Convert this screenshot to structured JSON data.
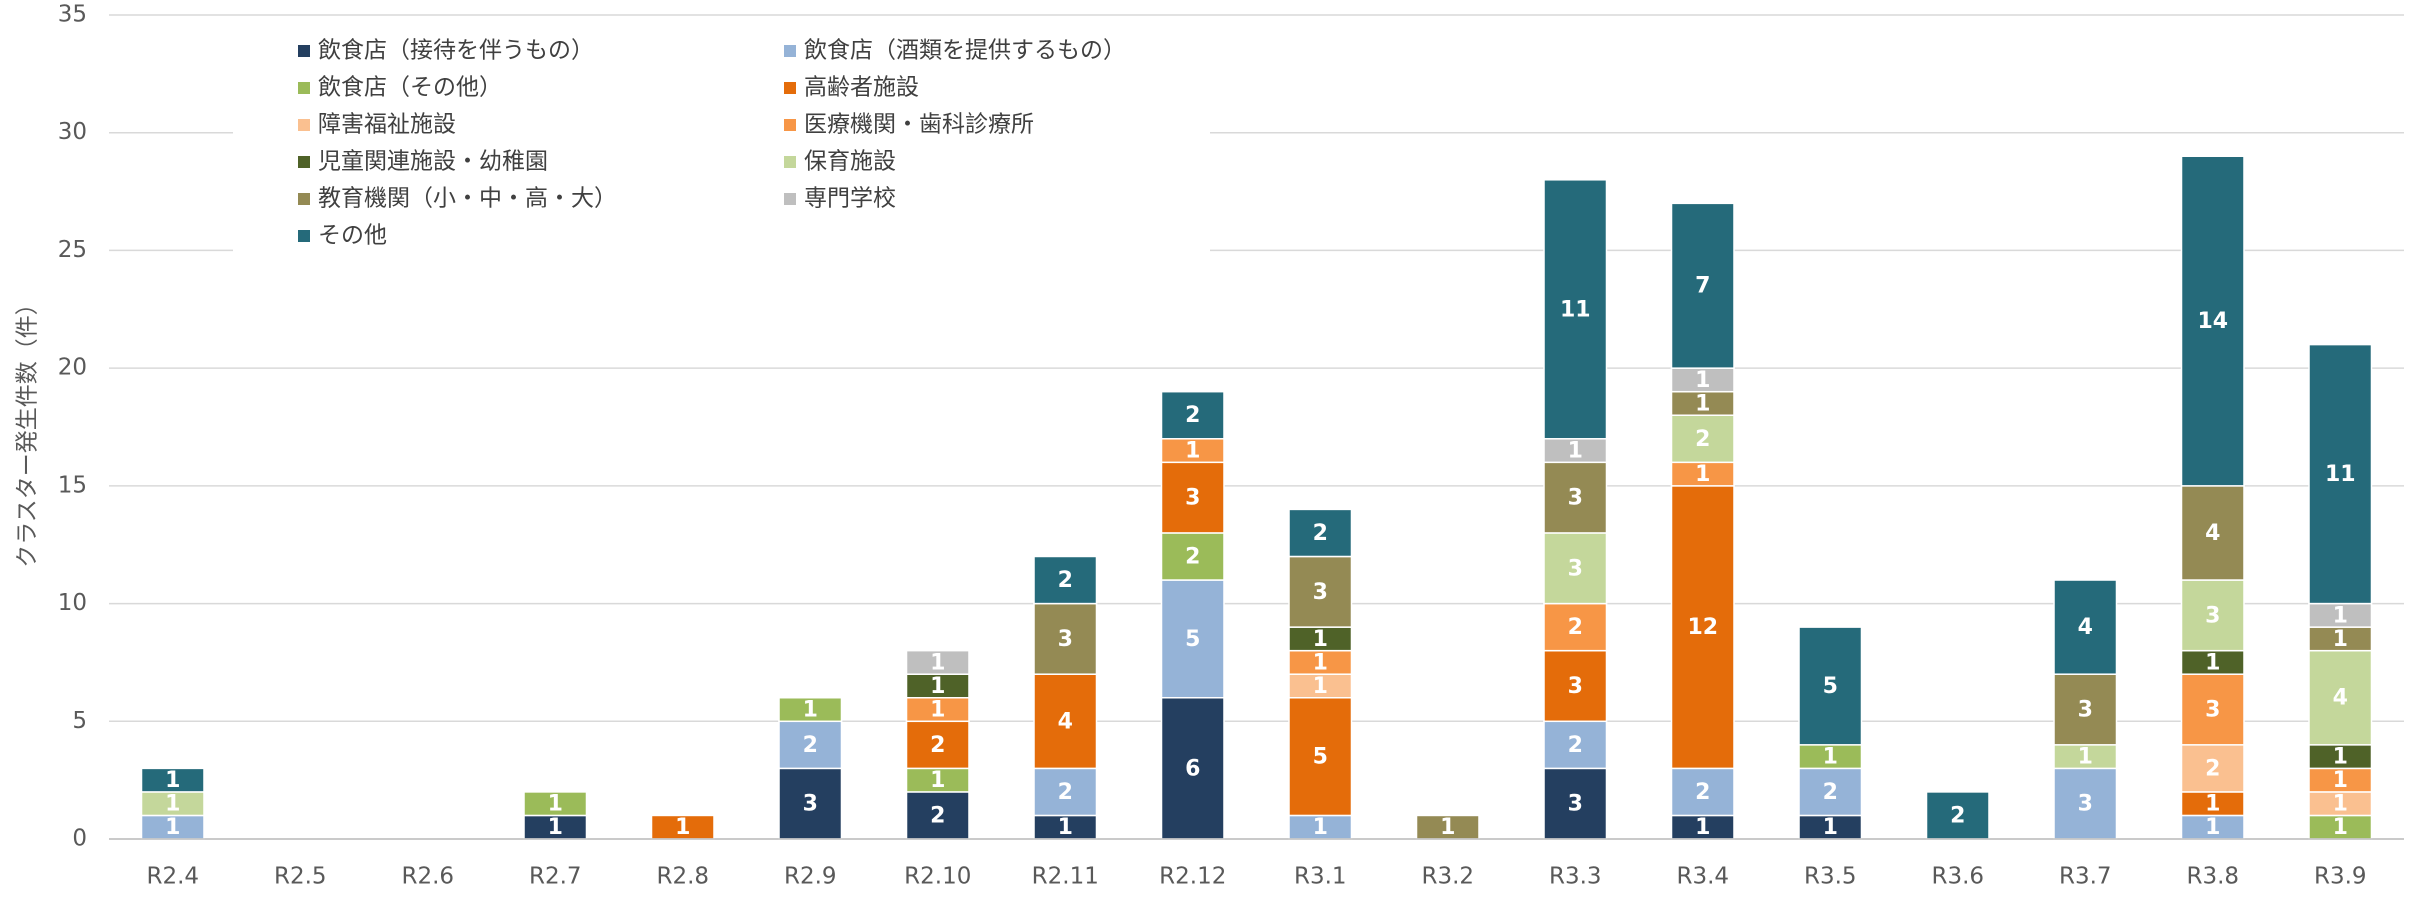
{
  "chart_data": {
    "type": "stacked_bar",
    "y_label": "クラスター発生件数（件）",
    "categories": [
      "R2.4",
      "R2.5",
      "R2.6",
      "R2.7",
      "R2.8",
      "R2.9",
      "R2.10",
      "R2.11",
      "R2.12",
      "R3.1",
      "R3.2",
      "R3.3",
      "R3.4",
      "R3.5",
      "R3.6",
      "R3.7",
      "R3.8",
      "R3.9"
    ],
    "series": [
      {
        "name": "飲食店（接待を伴うもの）",
        "color": "#243F60",
        "values": [
          0,
          0,
          0,
          1,
          0,
          3,
          2,
          1,
          6,
          0,
          0,
          3,
          1,
          1,
          0,
          0,
          0,
          0
        ]
      },
      {
        "name": "飲食店（酒類を提供するもの）",
        "color": "#95B3D7",
        "values": [
          1,
          0,
          0,
          0,
          0,
          2,
          0,
          2,
          5,
          1,
          0,
          2,
          2,
          2,
          0,
          3,
          1,
          0
        ]
      },
      {
        "name": "飲食店（その他）",
        "color": "#9BBB59",
        "values": [
          0,
          0,
          0,
          1,
          0,
          1,
          1,
          0,
          2,
          0,
          0,
          0,
          0,
          1,
          0,
          0,
          0,
          1
        ]
      },
      {
        "name": "高齢者施設",
        "color": "#E46C0A",
        "values": [
          0,
          0,
          0,
          0,
          1,
          0,
          2,
          4,
          3,
          5,
          0,
          3,
          12,
          0,
          0,
          0,
          1,
          0
        ]
      },
      {
        "name": "障害福祉施設",
        "color": "#FAC090",
        "values": [
          0,
          0,
          0,
          0,
          0,
          0,
          0,
          0,
          0,
          1,
          0,
          0,
          0,
          0,
          0,
          0,
          2,
          1
        ]
      },
      {
        "name": "医療機関・歯科診療所",
        "color": "#F79646",
        "values": [
          0,
          0,
          0,
          0,
          0,
          0,
          1,
          0,
          1,
          1,
          0,
          2,
          1,
          0,
          0,
          0,
          3,
          1
        ]
      },
      {
        "name": "児童関連施設・幼稚園",
        "color": "#4F6228",
        "values": [
          0,
          0,
          0,
          0,
          0,
          0,
          1,
          0,
          0,
          1,
          0,
          0,
          0,
          0,
          0,
          0,
          1,
          1
        ]
      },
      {
        "name": "保育施設",
        "color": "#C4D79B",
        "values": [
          1,
          0,
          0,
          0,
          0,
          0,
          0,
          0,
          0,
          0,
          0,
          3,
          2,
          0,
          0,
          1,
          3,
          4
        ]
      },
      {
        "name": "教育機関（小・中・高・大）",
        "color": "#948A54",
        "values": [
          0,
          0,
          0,
          0,
          0,
          0,
          0,
          3,
          0,
          3,
          1,
          3,
          1,
          0,
          0,
          3,
          4,
          1
        ]
      },
      {
        "name": "専門学校",
        "color": "#BFBFBF",
        "values": [
          0,
          0,
          0,
          0,
          0,
          0,
          1,
          0,
          0,
          0,
          0,
          1,
          1,
          0,
          0,
          0,
          0,
          1
        ]
      },
      {
        "name": "その他",
        "color": "#256A7A",
        "values": [
          1,
          0,
          0,
          0,
          0,
          0,
          0,
          2,
          2,
          2,
          0,
          11,
          7,
          5,
          2,
          4,
          14,
          11
        ]
      }
    ],
    "ylim": [
      0,
      35
    ],
    "yticks": [
      0,
      5,
      10,
      15,
      20,
      25,
      30,
      35
    ],
    "grid": true
  }
}
